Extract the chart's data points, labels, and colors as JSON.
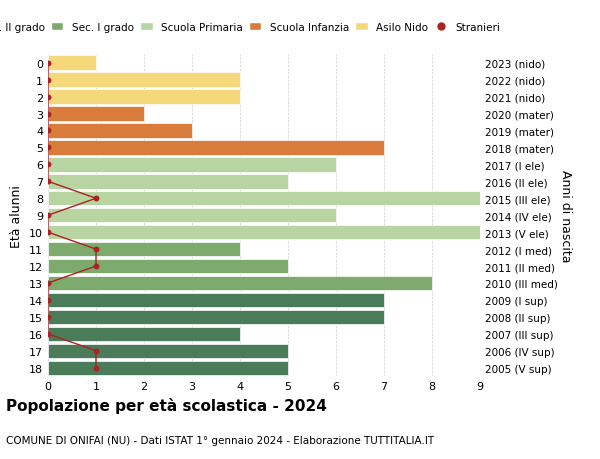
{
  "ages": [
    18,
    17,
    16,
    15,
    14,
    13,
    12,
    11,
    10,
    9,
    8,
    7,
    6,
    5,
    4,
    3,
    2,
    1,
    0
  ],
  "years": [
    "2005 (V sup)",
    "2006 (IV sup)",
    "2007 (III sup)",
    "2008 (II sup)",
    "2009 (I sup)",
    "2010 (III med)",
    "2011 (II med)",
    "2012 (I med)",
    "2013 (V ele)",
    "2014 (IV ele)",
    "2015 (III ele)",
    "2016 (II ele)",
    "2017 (I ele)",
    "2018 (mater)",
    "2019 (mater)",
    "2020 (mater)",
    "2021 (nido)",
    "2022 (nido)",
    "2023 (nido)"
  ],
  "bar_values": [
    5,
    5,
    4,
    7,
    7,
    8,
    5,
    4,
    9,
    6,
    9,
    5,
    6,
    7,
    3,
    2,
    4,
    4,
    1
  ],
  "bar_colors": [
    "#4a7c59",
    "#4a7c59",
    "#4a7c59",
    "#4a7c59",
    "#4a7c59",
    "#7dab6e",
    "#7dab6e",
    "#7dab6e",
    "#b8d4a0",
    "#b8d4a0",
    "#b8d4a0",
    "#b8d4a0",
    "#b8d4a0",
    "#d97b3a",
    "#d97b3a",
    "#d97b3a",
    "#f5d87a",
    "#f5d87a",
    "#f5d87a"
  ],
  "stranieri_x": [
    1,
    1,
    0,
    0,
    0,
    0,
    1,
    1,
    0,
    0,
    1,
    0,
    0,
    0,
    0,
    0,
    0,
    0,
    0
  ],
  "legend_labels": [
    "Sec. II grado",
    "Sec. I grado",
    "Scuola Primaria",
    "Scuola Infanzia",
    "Asilo Nido",
    "Stranieri"
  ],
  "legend_colors": [
    "#4a7c59",
    "#7dab6e",
    "#b8d4a0",
    "#d97b3a",
    "#f5d87a",
    "#aa2222"
  ],
  "ylabel": "Età alunni",
  "right_label": "Anni di nascita",
  "title": "Popolazione per età scolastica - 2024",
  "subtitle": "COMUNE DI ONIFAI (NU) - Dati ISTAT 1° gennaio 2024 - Elaborazione TUTTITALIA.IT",
  "xlim": [
    0,
    9
  ],
  "background_color": "#ffffff",
  "grid_color": "#cccccc",
  "stranieri_line_color": "#aa2222",
  "stranieri_dot_color": "#aa2222"
}
